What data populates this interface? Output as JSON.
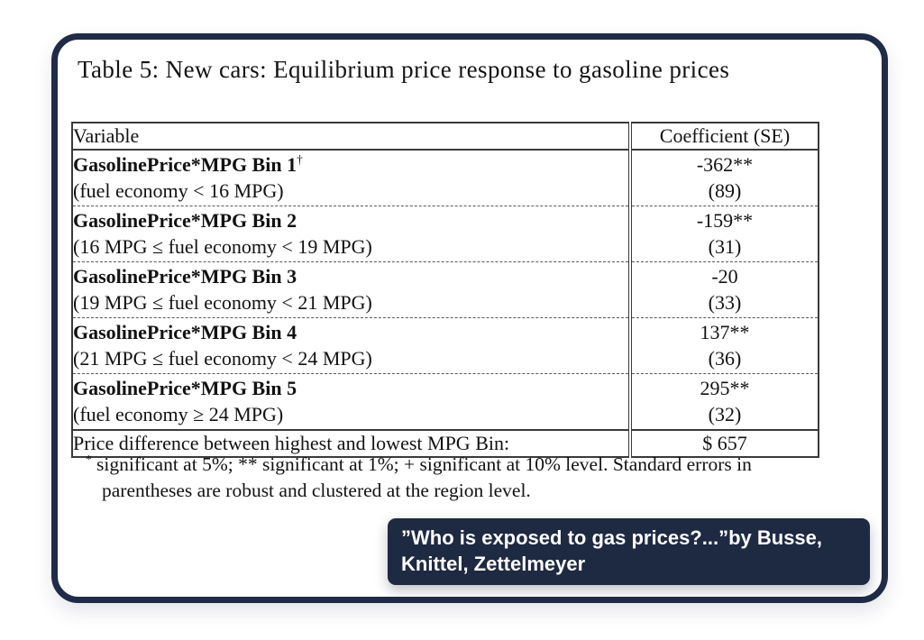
{
  "title": "Table 5: New cars: Equilibrium price response to gasoline prices",
  "table": {
    "headers": {
      "variable": "Variable",
      "coefficient": "Coefficient (SE)"
    },
    "rows": [
      {
        "name": "GasolinePrice*MPG Bin 1",
        "dagger": "†",
        "range": "(fuel economy < 16 MPG)",
        "coef": "-362**",
        "se": "(89)"
      },
      {
        "name": "GasolinePrice*MPG Bin 2",
        "dagger": "",
        "range": "(16 MPG ≤ fuel economy < 19 MPG)",
        "coef": "-159**",
        "se": "(31)"
      },
      {
        "name": "GasolinePrice*MPG Bin 3",
        "dagger": "",
        "range": "(19 MPG ≤ fuel economy < 21 MPG)",
        "coef": "-20",
        "se": "(33)"
      },
      {
        "name": "GasolinePrice*MPG Bin 4",
        "dagger": "",
        "range": "(21 MPG ≤ fuel economy < 24 MPG)",
        "coef": "137**",
        "se": "(36)"
      },
      {
        "name": "GasolinePrice*MPG Bin 5",
        "dagger": "",
        "range": "(fuel economy ≥ 24 MPG)",
        "coef": "295**",
        "se": "(32)"
      }
    ],
    "summary": {
      "label": "Price difference between highest and lowest MPG Bin:",
      "value": "$ 657"
    }
  },
  "footnote": {
    "marker": "*",
    "text": "significant at 5%; ** significant at 1%; + significant at 10% level. Standard errors in parentheses are robust and clustered at the region level."
  },
  "caption": {
    "line1": "”Who is exposed to gas prices?...”by Busse,",
    "line2": "Knittel, Zettelmeyer",
    "bg": "#1e2942",
    "text_color": "#ffffff"
  },
  "colors": {
    "frame_border": "#1f2b47",
    "table_border": "#3a3a3a",
    "page_bg": "#ffffff",
    "text": "#121212"
  }
}
